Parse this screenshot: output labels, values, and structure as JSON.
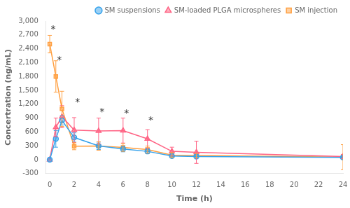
{
  "chart_data": {
    "type": "line",
    "x": [
      0,
      0.5,
      1,
      2,
      4,
      6,
      8,
      10,
      12,
      24
    ],
    "series": [
      {
        "name": "SM suspensions",
        "marker": "circle",
        "values": [
          0,
          450,
          850,
          480,
          300,
          230,
          180,
          80,
          70,
          50
        ],
        "errors": [
          0,
          180,
          100,
          100,
          80,
          60,
          50,
          40,
          35,
          25
        ]
      },
      {
        "name": "SM-loaded PLGA microspheres",
        "marker": "triangle",
        "values": [
          0,
          700,
          930,
          640,
          620,
          630,
          450,
          180,
          160,
          70
        ],
        "errors": [
          0,
          200,
          240,
          270,
          280,
          270,
          200,
          90,
          240,
          45
        ]
      },
      {
        "name": "SM injection",
        "marker": "square",
        "values": [
          2500,
          1800,
          1100,
          290,
          295,
          265,
          220,
          100,
          90,
          55
        ],
        "errors": [
          190,
          340,
          380,
          75,
          90,
          85,
          75,
          55,
          45,
          270
        ]
      }
    ],
    "annotations": [
      {
        "x": 0.08,
        "y": 2820,
        "text": "*"
      },
      {
        "x": 0.58,
        "y": 2140,
        "text": "*"
      },
      {
        "x": 2.08,
        "y": 1230,
        "text": "*"
      },
      {
        "x": 4.08,
        "y": 1030,
        "text": "*"
      },
      {
        "x": 6.08,
        "y": 1000,
        "text": "*"
      },
      {
        "x": 8.08,
        "y": 840,
        "text": "*"
      }
    ],
    "xlabel": "Time (h)",
    "ylabel": "Concertration (ng/mL)",
    "xlim": [
      -0.3,
      24
    ],
    "ylim": [
      -300,
      3000
    ],
    "xticks": [
      0,
      2,
      4,
      6,
      8,
      10,
      12,
      14,
      16,
      18,
      20,
      22,
      24
    ],
    "yticks": [
      -300,
      0,
      300,
      600,
      900,
      1200,
      1500,
      1800,
      2100,
      2400,
      2700,
      3000
    ],
    "grid": false,
    "legend": "upper right"
  }
}
